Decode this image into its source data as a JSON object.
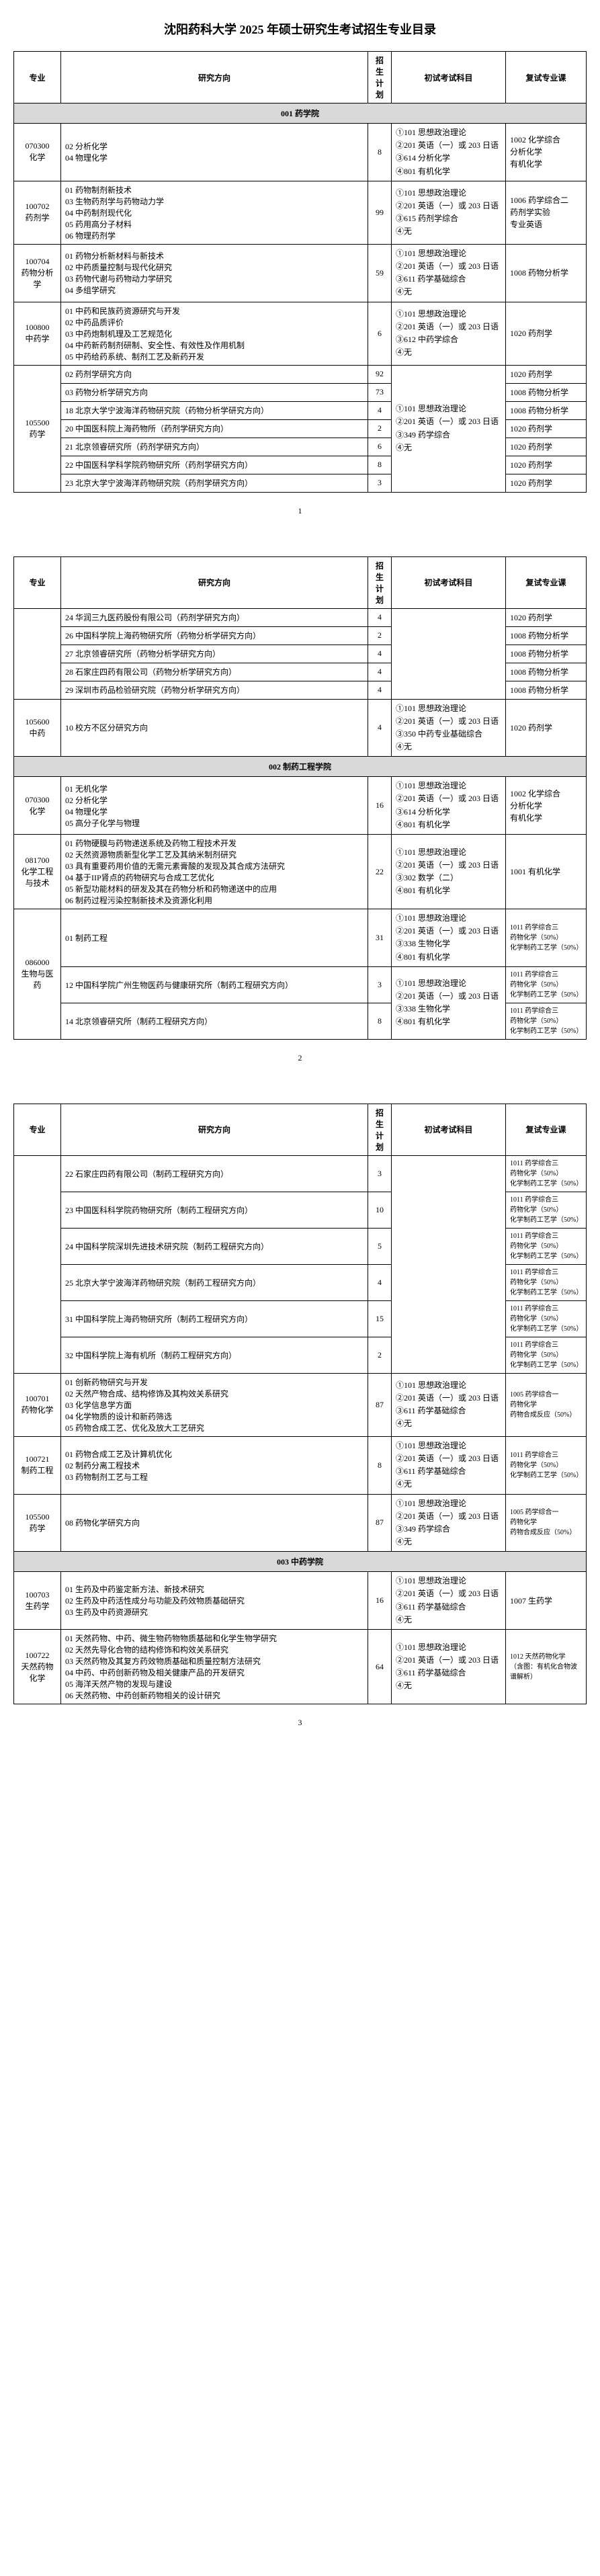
{
  "title": "沈阳药科大学 2025 年硕士研究生考试招生专业目录",
  "headers": {
    "major": "专业",
    "direction": "研究方向",
    "plan": "招生计划",
    "exam": "初试考试科目",
    "retest": "复试专业课"
  },
  "sections": [
    {
      "name": "001 药学院",
      "groups": [
        {
          "major": "070300\n化学",
          "directions": [
            {
              "no": "02",
              "name": "分析化学"
            },
            {
              "no": "04",
              "name": "物理化学"
            }
          ],
          "plan": "8",
          "exam": "①101 思想政治理论\n②201 英语（一）或 203 日语\n③614 分析化学\n④801 有机化学",
          "retest": "1002 化学综合\n分析化学\n有机化学",
          "merged": true
        },
        {
          "major": "100702\n药剂学",
          "directions": [
            {
              "no": "01",
              "name": "药物制剂新技术"
            },
            {
              "no": "03",
              "name": "生物药剂学与药物动力学"
            },
            {
              "no": "04",
              "name": "中药制剂现代化"
            },
            {
              "no": "05",
              "name": "药用高分子材料"
            },
            {
              "no": "06",
              "name": "物理药剂学"
            }
          ],
          "plan": "99",
          "exam": "①101 思想政治理论\n②201 英语（一）或 203 日语\n③615 药剂学综合\n④无",
          "retest": "1006 药学综合二\n药剂学实验\n专业英语",
          "merged": true
        },
        {
          "major": "100704\n药物分析学",
          "directions": [
            {
              "no": "01",
              "name": "药物分析新材料与新技术"
            },
            {
              "no": "02",
              "name": "中药质量控制与现代化研究"
            },
            {
              "no": "03",
              "name": "药物代谢与药物动力学研究"
            },
            {
              "no": "04",
              "name": "多组学研究"
            }
          ],
          "plan": "59",
          "exam": "①101 思想政治理论\n②201 英语（一）或 203 日语\n③611 药学基础综合\n④无",
          "retest": "1008 药物分析学",
          "merged": true
        },
        {
          "major": "100800\n中药学",
          "directions": [
            {
              "no": "01",
              "name": "中药和民族药资源研究与开发"
            },
            {
              "no": "02",
              "name": "中药品质评价"
            },
            {
              "no": "03",
              "name": "中药炮制机理及工艺规范化"
            },
            {
              "no": "04",
              "name": "中药新药制剂研制、安全性、有效性及作用机制"
            },
            {
              "no": "05",
              "name": "中药给药系统、制剂工艺及新药开发"
            }
          ],
          "plan": "6",
          "exam": "①101 思想政治理论\n②201 英语（一）或 203 日语\n③612 中药学综合\n④无",
          "retest": "1020 药剂学",
          "merged": true
        },
        {
          "major": "105500\n药学",
          "sharedExam": "①101 思想政治理论\n②201 英语（一）或 203 日语\n③349 药学综合\n④无",
          "directions": [
            {
              "no": "02",
              "name": "药剂学研究方向",
              "plan": "92",
              "retest": "1020 药剂学"
            },
            {
              "no": "03",
              "name": "药物分析学研究方向",
              "plan": "73",
              "retest": "1008 药物分析学"
            },
            {
              "no": "18",
              "name": "北京大学宁波海洋药物研究院（药物分析学研究方向）",
              "plan": "4",
              "retest": "1008 药物分析学"
            },
            {
              "no": "20",
              "name": "中国医科院上海药物所（药剂学研究方向）",
              "plan": "2",
              "retest": "1020 药剂学"
            },
            {
              "no": "21",
              "name": "北京领睿研究所（药剂学研究方向）",
              "plan": "6",
              "retest": "1020 药剂学"
            },
            {
              "no": "22",
              "name": "中国医科学科学院药物研究所（药剂学研究方向）",
              "plan": "8",
              "retest": "1020 药剂学"
            },
            {
              "no": "23",
              "name": "北京大学宁波海洋药物研究院（药剂学研究方向）",
              "plan": "3",
              "retest": "1020 药剂学"
            }
          ]
        }
      ],
      "pageNum": "1"
    },
    {
      "groups": [
        {
          "majorContinued": "105500\n药学",
          "sharedExam": "①101 思想政治理论\n②201 英语（一）或 203 日语\n③349 药学综合\n④无",
          "directions": [
            {
              "no": "24",
              "name": "华润三九医药股份有限公司（药剂学研究方向）",
              "plan": "4",
              "retest": "1020 药剂学"
            },
            {
              "no": "26",
              "name": "中国科学院上海药物研究所（药物分析学研究方向）",
              "plan": "2",
              "retest": "1008 药物分析学"
            },
            {
              "no": "27",
              "name": "北京领睿研究所（药物分析学研究方向）",
              "plan": "4",
              "retest": "1008 药物分析学"
            },
            {
              "no": "28",
              "name": "石家庄四药有限公司（药物分析学研究方向）",
              "plan": "4",
              "retest": "1008 药物分析学"
            },
            {
              "no": "29",
              "name": "深圳市药品检验研究院（药物分析学研究方向）",
              "plan": "4",
              "retest": "1008 药物分析学"
            }
          ]
        },
        {
          "major": "105600\n中药",
          "directions": [
            {
              "no": "10",
              "name": "校方不区分研究方向"
            }
          ],
          "plan": "4",
          "exam": "①101 思想政治理论\n②201 英语（一）或 203 日语\n③350 中药专业基础综合\n④无",
          "retest": "1020 药剂学",
          "merged": true
        }
      ]
    },
    {
      "name": "002 制药工程学院",
      "groups": [
        {
          "major": "070300\n化学",
          "directions": [
            {
              "no": "01",
              "name": "无机化学"
            },
            {
              "no": "02",
              "name": "分析化学"
            },
            {
              "no": "04",
              "name": "物理化学"
            },
            {
              "no": "05",
              "name": "高分子化学与物理"
            }
          ],
          "plan": "16",
          "exam": "①101 思想政治理论\n②201 英语（一）或 203 日语\n③614 分析化学\n④801 有机化学",
          "retest": "1002 化学综合\n分析化学\n有机化学",
          "merged": true
        },
        {
          "major": "081700\n化学工程与技术",
          "directions": [
            {
              "no": "01",
              "name": "药物硬膜与药物递送系统及药物工程技术开发"
            },
            {
              "no": "02",
              "name": "天然资源物质新型化学工艺及其纳米制剂研究"
            },
            {
              "no": "03",
              "name": "具有重要药用价值的无需元素膏酸的发现及其合成方法研究"
            },
            {
              "no": "04",
              "name": "基于IIP肾点的药物研究与合成工艺优化"
            },
            {
              "no": "05",
              "name": "新型功能材料的研发及其在药物分析和药物递送中的应用"
            },
            {
              "no": "06",
              "name": "制药过程污染控制新技术及资源化利用"
            }
          ],
          "plan": "22",
          "exam": "①101 思想政治理论\n②201 英语（一）或 203 日语\n③302 数学（二）\n④801 有机化学",
          "retest": "1001 有机化学",
          "merged": true
        },
        {
          "major": "086000\n生物与医药",
          "directions": [
            {
              "no": "01",
              "name": "制药工程",
              "plan": "31",
              "exam": "①101 思想政治理论\n②201 英语（一）或 203 日语\n③338 生物化学\n④801 有机化学",
              "retest": "1011 药学综合三\n药物化学（50%）\n化学制药工艺学（50%）"
            },
            {
              "no": "12",
              "name": "中国科学院广州生物医药与健康研究所（制药工程研究方向）",
              "plan": "3",
              "exam": "①101 思想政治理论\n②201 英语（一）或 203 日语\n③338 生物化学\n④801 有机化学",
              "retest": "1011 药学综合三\n药物化学（50%）\n化学制药工艺学（50%）"
            },
            {
              "no": "14",
              "name": "北京领睿研究所（制药工程研究方向）",
              "plan": "8",
              "exam": "①101 思想政治理论\n②201 英语（一）或 203 日语\n③338 生物化学\n④801 有机化学",
              "retest": "1011 药学综合三\n药物化学（50%）\n化学制药工艺学（50%）"
            }
          ]
        }
      ],
      "pageNum": "2"
    },
    {
      "groups": [
        {
          "majorContinued": "086000\n生物与医药",
          "directions": [
            {
              "no": "22",
              "name": "石家庄四药有限公司（制药工程研究方向）",
              "plan": "3",
              "retest": "1011 药学综合三\n药物化学（50%）\n化学制药工艺学（50%）"
            },
            {
              "no": "23",
              "name": "中国医科科学院药物研究所（制药工程研究方向）",
              "plan": "10",
              "retest": "1011 药学综合三\n药物化学（50%）\n化学制药工艺学（50%）"
            },
            {
              "no": "24",
              "name": "中国科学院深圳先进技术研究院（制药工程研究方向）",
              "plan": "5",
              "retest": "1011 药学综合三\n药物化学（50%）\n化学制药工艺学（50%）"
            },
            {
              "no": "25",
              "name": "北京大学宁波海洋药物研究院（制药工程研究方向）",
              "plan": "4",
              "retest": "1011 药学综合三\n药物化学（50%）\n化学制药工艺学（50%）"
            },
            {
              "no": "31",
              "name": "中国科学院上海药物研究所（制药工程研究方向）",
              "plan": "15",
              "retest": "1011 药学综合三\n药物化学（50%）\n化学制药工艺学（50%）"
            },
            {
              "no": "32",
              "name": "中国科学院上海有机所（制药工程研究方向）",
              "plan": "2",
              "retest": "1011 药学综合三\n药物化学（50%）\n化学制药工艺学（50%）"
            }
          ]
        },
        {
          "major": "100701\n药物化学",
          "directions": [
            {
              "no": "01",
              "name": "创新药物研究与开发"
            },
            {
              "no": "02",
              "name": "天然产物合成、结构修饰及其构效关系研究"
            },
            {
              "no": "03",
              "name": "化学信息学方面"
            },
            {
              "no": "04",
              "name": "化学物质的设计和新药筛选"
            },
            {
              "no": "05",
              "name": "药物合成工艺、优化及放大工艺研究"
            }
          ],
          "plan": "87",
          "exam": "①101 思想政治理论\n②201 英语（一）或 203 日语\n③611 药学基础综合\n④无",
          "retest": "1005 药学综合一\n药物化学\n药物合成反应（50%）",
          "merged": true
        },
        {
          "major": "100721\n制药工程",
          "directions": [
            {
              "no": "01",
              "name": "药物合成工艺及计算机优化"
            },
            {
              "no": "02",
              "name": "制药分离工程技术"
            },
            {
              "no": "03",
              "name": "药物制剂工艺与工程"
            }
          ],
          "plan": "8",
          "exam": "①101 思想政治理论\n②201 英语（一）或 203 日语\n③611 药学基础综合\n④无",
          "retest": "1011 药学综合三\n药物化学（50%）\n化学制药工艺学（50%）",
          "merged": true
        },
        {
          "major": "105500\n药学",
          "directions": [
            {
              "no": "08",
              "name": "药物化学研究方向"
            }
          ],
          "plan": "87",
          "exam": "①101 思想政治理论\n②201 英语（一）或 203 日语\n③349 药学综合\n④无",
          "retest": "1005 药学综合一\n药物化学\n药物合成反应（50%）",
          "merged": true
        }
      ]
    },
    {
      "name": "003 中药学院",
      "groups": [
        {
          "major": "100703\n生药学",
          "directions": [
            {
              "no": "01",
              "name": "生药及中药鉴定新方法、新技术研究"
            },
            {
              "no": "02",
              "name": "生药及中药活性成分与功能及药效物质基础研究"
            },
            {
              "no": "03",
              "name": "生药及中药资源研究"
            }
          ],
          "plan": "16",
          "exam": "①101 思想政治理论\n②201 英语（一）或 203 日语\n③611 药学基础综合\n④无",
          "retest": "1007 生药学",
          "merged": true
        },
        {
          "major": "100722\n天然药物化学",
          "directions": [
            {
              "no": "01",
              "name": "天然药物、中药、微生物药物物质基础和化学生物学研究"
            },
            {
              "no": "02",
              "name": "天然先导化合物的结构修饰和构效关系研究"
            },
            {
              "no": "03",
              "name": "天然药物及其复方药效物质基础和质量控制方法研究"
            },
            {
              "no": "04",
              "name": "中药、中药创新药物及相关健康产品的开发研究"
            },
            {
              "no": "05",
              "name": "海洋天然产物的发现与建设"
            },
            {
              "no": "06",
              "name": "天然药物、中药创新药物相关的设计研究"
            }
          ],
          "plan": "64",
          "exam": "①101 思想政治理论\n②201 英语（一）或 203 日语\n③611 药学基础综合\n④无",
          "retest": "1012 天然药物化学\n（含图：有机化合物波谱解析）",
          "merged": true
        }
      ],
      "pageNum": "3"
    }
  ]
}
